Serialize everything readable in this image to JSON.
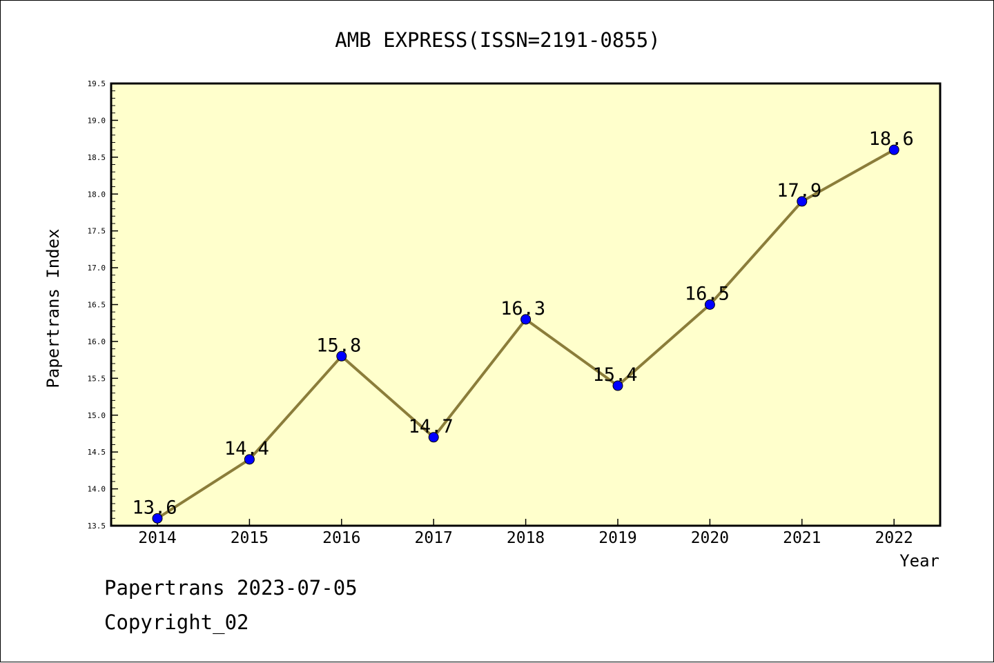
{
  "chart_data": {
    "type": "line",
    "title": "AMB EXPRESS(ISSN=2191-0855)",
    "xlabel": "Year",
    "ylabel": "Papertrans Index",
    "categories": [
      "2014",
      "2015",
      "2016",
      "2017",
      "2018",
      "2019",
      "2020",
      "2021",
      "2022"
    ],
    "series": [
      {
        "values": [
          13.6,
          14.4,
          15.8,
          14.7,
          16.3,
          15.4,
          16.5,
          17.9,
          18.6
        ],
        "data_labels": [
          "13.6",
          "14.4",
          "15.8",
          "14.7",
          "16.3",
          "15.4",
          "16.5",
          "17.9",
          "18.6"
        ]
      }
    ],
    "ylim": [
      13.5,
      19.5
    ],
    "yticks": [
      13.5,
      14.0,
      14.5,
      15.0,
      15.5,
      16.0,
      16.5,
      17.0,
      17.5,
      18.0,
      18.5,
      19.0,
      19.5
    ],
    "ytick_labels": [
      "13.5",
      "14.0",
      "14.5",
      "15.0",
      "15.5",
      "16.0",
      "16.5",
      "17.0",
      "17.5",
      "18.0",
      "18.5",
      "19.0",
      "19.5"
    ],
    "grid": false,
    "colors": {
      "plot_background": "#ffffcc",
      "line": "#8b7d3a",
      "marker": "#0000ff"
    }
  },
  "footer": {
    "line1": "Papertrans 2023-07-05",
    "line2": "Copyright_02"
  }
}
